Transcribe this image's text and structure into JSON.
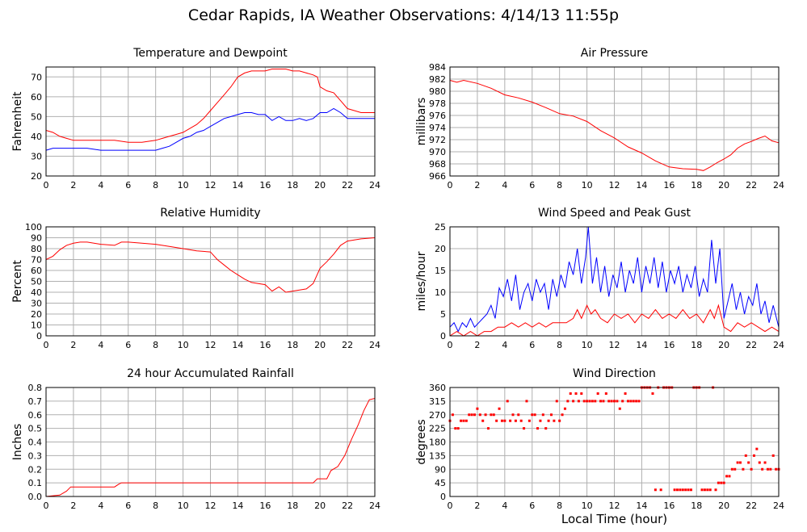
{
  "page": {
    "title": "Cedar Rapids, IA Weather Observations: 4/14/13 11:55p",
    "x_axis_title": "Local Time (hour)"
  },
  "colors": {
    "red": "#ff0000",
    "blue": "#0000ff",
    "grid": "#b0b0b0",
    "frame": "#000000"
  },
  "chart_data": [
    {
      "id": "temp",
      "type": "line",
      "title": "Temperature and Dewpoint",
      "ylabel": "Fahrenheit",
      "xlim": [
        0,
        24
      ],
      "ylim": [
        20,
        75
      ],
      "yticks": [
        20,
        30,
        40,
        50,
        60,
        70
      ],
      "xticks": [
        0,
        2,
        4,
        6,
        8,
        10,
        12,
        14,
        16,
        18,
        20,
        22,
        24
      ],
      "grid": true,
      "series": [
        {
          "color": "#ff0000",
          "x": [
            0,
            0.5,
            1,
            1.5,
            2,
            3,
            4,
            5,
            6,
            7,
            8,
            8.5,
            9,
            9.5,
            10,
            10.5,
            11,
            11.5,
            12,
            12.5,
            13,
            13.5,
            14,
            14.5,
            15,
            15.5,
            16,
            16.5,
            17,
            17.5,
            18,
            18.5,
            19,
            19.5,
            19.8,
            20,
            20.5,
            21,
            21.5,
            22,
            22.5,
            23,
            24
          ],
          "y": [
            43,
            42,
            40,
            39,
            38,
            38,
            38,
            38,
            37,
            37,
            38,
            39,
            40,
            41,
            42,
            44,
            46,
            49,
            53,
            57,
            61,
            65,
            70,
            72,
            73,
            73,
            73,
            74,
            74,
            74,
            73,
            73,
            72,
            71,
            70,
            65,
            63,
            62,
            58,
            54,
            53,
            52,
            52
          ]
        },
        {
          "color": "#0000ff",
          "x": [
            0,
            0.5,
            1,
            2,
            3,
            4,
            5,
            6,
            7,
            8,
            8.5,
            9,
            9.5,
            10,
            10.5,
            11,
            11.5,
            12,
            12.5,
            13,
            13.5,
            14,
            14.5,
            15,
            15.5,
            16,
            16.5,
            17,
            17.5,
            18,
            18.5,
            19,
            19.5,
            20,
            20.5,
            21,
            21.5,
            22,
            23,
            24
          ],
          "y": [
            33,
            34,
            34,
            34,
            34,
            33,
            33,
            33,
            33,
            33,
            34,
            35,
            37,
            39,
            40,
            42,
            43,
            45,
            47,
            49,
            50,
            51,
            52,
            52,
            51,
            51,
            48,
            50,
            48,
            48,
            49,
            48,
            49,
            52,
            52,
            54,
            52,
            49,
            49,
            49
          ]
        }
      ]
    },
    {
      "id": "pressure",
      "type": "line",
      "title": "Air Pressure",
      "ylabel": "millibars",
      "xlim": [
        0,
        24
      ],
      "ylim": [
        966,
        984
      ],
      "yticks": [
        966,
        968,
        970,
        972,
        974,
        976,
        978,
        980,
        982,
        984
      ],
      "xticks": [
        0,
        2,
        4,
        6,
        8,
        10,
        12,
        14,
        16,
        18,
        20,
        22,
        24
      ],
      "grid": true,
      "series": [
        {
          "color": "#ff0000",
          "x": [
            0,
            0.5,
            1,
            2,
            3,
            4,
            5,
            6,
            7,
            8,
            9,
            10,
            11,
            12,
            13,
            14,
            15,
            16,
            17,
            18,
            18.5,
            19,
            19.5,
            20,
            20.5,
            21,
            21.5,
            22,
            22.5,
            23,
            23.5,
            24
          ],
          "y": [
            981.8,
            981.5,
            981.8,
            981.3,
            980.5,
            979.4,
            978.9,
            978.2,
            977.3,
            976.3,
            975.9,
            975.0,
            973.5,
            972.3,
            970.8,
            969.8,
            968.5,
            967.5,
            967.2,
            967.1,
            966.9,
            967.5,
            968.2,
            968.8,
            969.5,
            970.6,
            971.3,
            971.7,
            972.2,
            972.6,
            971.8,
            971.5
          ]
        }
      ]
    },
    {
      "id": "humidity",
      "type": "line",
      "title": "Relative Humidity",
      "ylabel": "Percent",
      "xlim": [
        0,
        24
      ],
      "ylim": [
        0,
        100
      ],
      "yticks": [
        0,
        10,
        20,
        30,
        40,
        50,
        60,
        70,
        80,
        90,
        100
      ],
      "xticks": [
        0,
        2,
        4,
        6,
        8,
        10,
        12,
        14,
        16,
        18,
        20,
        22,
        24
      ],
      "grid": true,
      "series": [
        {
          "color": "#ff0000",
          "x": [
            0,
            0.5,
            1,
            1.5,
            2,
            2.5,
            3,
            4,
            5,
            5.5,
            6,
            7,
            8,
            9,
            10,
            11,
            12,
            12.5,
            13,
            13.5,
            14,
            14.5,
            15,
            16,
            16.5,
            17,
            17.5,
            18,
            19,
            19.5,
            20,
            20.5,
            21,
            21.5,
            22,
            23,
            24
          ],
          "y": [
            70,
            73,
            79,
            83,
            85,
            86,
            86,
            84,
            83,
            86,
            86,
            85,
            84,
            82,
            80,
            78,
            77,
            70,
            65,
            60,
            56,
            52,
            49,
            47,
            41,
            45,
            40,
            41,
            43,
            48,
            62,
            68,
            75,
            83,
            87,
            89,
            90
          ]
        }
      ]
    },
    {
      "id": "wind",
      "type": "line",
      "title": "Wind Speed and Peak Gust",
      "ylabel": "miles/hour",
      "xlim": [
        0,
        24
      ],
      "ylim": [
        0,
        25
      ],
      "yticks": [
        0,
        5,
        10,
        15,
        20,
        25
      ],
      "xticks": [
        0,
        2,
        4,
        6,
        8,
        10,
        12,
        14,
        16,
        18,
        20,
        22,
        24
      ],
      "grid": true,
      "series": [
        {
          "color": "#0000ff",
          "x": [
            0,
            0.3,
            0.6,
            0.9,
            1.2,
            1.5,
            1.8,
            2.1,
            2.4,
            2.7,
            3,
            3.3,
            3.6,
            3.9,
            4.2,
            4.5,
            4.8,
            5.1,
            5.4,
            5.7,
            6,
            6.3,
            6.6,
            6.9,
            7.2,
            7.5,
            7.8,
            8.1,
            8.4,
            8.7,
            9,
            9.3,
            9.6,
            9.9,
            10.1,
            10.4,
            10.7,
            11,
            11.3,
            11.6,
            11.9,
            12.2,
            12.5,
            12.8,
            13.1,
            13.4,
            13.7,
            14,
            14.3,
            14.6,
            14.9,
            15.2,
            15.5,
            15.8,
            16.1,
            16.4,
            16.7,
            17,
            17.3,
            17.6,
            17.9,
            18.2,
            18.5,
            18.8,
            19.1,
            19.4,
            19.7,
            20,
            20.3,
            20.6,
            20.9,
            21.2,
            21.5,
            21.8,
            22.1,
            22.4,
            22.7,
            23,
            23.3,
            23.6,
            24
          ],
          "y": [
            2,
            3,
            1,
            3,
            2,
            4,
            2,
            3,
            4,
            5,
            7,
            4,
            11,
            9,
            13,
            8,
            14,
            6,
            10,
            12,
            8,
            13,
            10,
            12,
            6,
            13,
            9,
            14,
            11,
            17,
            14,
            20,
            12,
            18,
            25,
            12,
            18,
            10,
            16,
            9,
            14,
            11,
            17,
            10,
            15,
            12,
            18,
            10,
            16,
            12,
            18,
            11,
            17,
            10,
            15,
            12,
            16,
            10,
            14,
            11,
            16,
            9,
            13,
            10,
            22,
            12,
            20,
            4,
            8,
            12,
            6,
            10,
            5,
            9,
            7,
            12,
            5,
            8,
            3,
            7,
            2
          ]
        },
        {
          "color": "#ff0000",
          "x": [
            0,
            0.5,
            1,
            1.5,
            2,
            2.5,
            3,
            3.5,
            4,
            4.5,
            5,
            5.5,
            6,
            6.5,
            7,
            7.5,
            8,
            8.5,
            9,
            9.3,
            9.6,
            10,
            10.3,
            10.6,
            11,
            11.5,
            12,
            12.5,
            13,
            13.5,
            14,
            14.5,
            15,
            15.5,
            16,
            16.5,
            17,
            17.5,
            18,
            18.5,
            19,
            19.3,
            19.6,
            20,
            20.5,
            21,
            21.5,
            22,
            22.5,
            23,
            23.5,
            24
          ],
          "y": [
            0,
            1,
            0,
            1,
            0,
            1,
            1,
            2,
            2,
            3,
            2,
            3,
            2,
            3,
            2,
            3,
            3,
            3,
            4,
            6,
            4,
            7,
            5,
            6,
            4,
            3,
            5,
            4,
            5,
            3,
            5,
            4,
            6,
            4,
            5,
            4,
            6,
            4,
            5,
            3,
            6,
            4,
            7,
            2,
            1,
            3,
            2,
            3,
            2,
            1,
            2,
            1
          ]
        }
      ]
    },
    {
      "id": "rain",
      "type": "line",
      "title": "24 hour Accumulated Rainfall",
      "ylabel": "Inches",
      "xlim": [
        0,
        24
      ],
      "ylim": [
        0,
        0.8
      ],
      "yticks": [
        0.0,
        0.1,
        0.2,
        0.3,
        0.4,
        0.5,
        0.6,
        0.7,
        0.8
      ],
      "ytick_labels": [
        "0.0",
        "0.1",
        "0.2",
        "0.3",
        "0.4",
        "0.5",
        "0.6",
        "0.7",
        "0.8"
      ],
      "xticks": [
        0,
        2,
        4,
        6,
        8,
        10,
        12,
        14,
        16,
        18,
        20,
        22,
        24
      ],
      "grid": true,
      "series": [
        {
          "color": "#ff0000",
          "x": [
            0,
            1,
            1.5,
            1.8,
            2,
            5,
            5.3,
            5.5,
            6,
            19.5,
            19.8,
            20.5,
            20.8,
            21.3,
            21.8,
            22.3,
            22.8,
            23.2,
            23.6,
            24
          ],
          "y": [
            0,
            0.01,
            0.04,
            0.07,
            0.07,
            0.07,
            0.09,
            0.1,
            0.1,
            0.1,
            0.13,
            0.13,
            0.19,
            0.22,
            0.3,
            0.42,
            0.53,
            0.63,
            0.71,
            0.72
          ]
        }
      ]
    },
    {
      "id": "direction",
      "type": "scatter",
      "title": "Wind Direction",
      "ylabel": "degrees",
      "xlim": [
        0,
        24
      ],
      "ylim": [
        0,
        360
      ],
      "yticks": [
        0,
        45,
        90,
        135,
        180,
        225,
        270,
        315,
        360
      ],
      "xticks": [
        0,
        2,
        4,
        6,
        8,
        10,
        12,
        14,
        16,
        18,
        20,
        22,
        24
      ],
      "grid": true,
      "series": [
        {
          "color": "#ff0000",
          "x": [
            0,
            0.2,
            0.4,
            0.6,
            0.8,
            1.0,
            1.2,
            1.4,
            1.6,
            1.8,
            2.0,
            2.2,
            2.4,
            2.6,
            2.8,
            3.0,
            3.2,
            3.4,
            3.6,
            3.8,
            4.0,
            4.2,
            4.4,
            4.6,
            4.8,
            5.0,
            5.2,
            5.4,
            5.6,
            5.8,
            6.0,
            6.2,
            6.4,
            6.6,
            6.8,
            7.0,
            7.2,
            7.4,
            7.6,
            7.8,
            8.0,
            8.2,
            8.4,
            8.6,
            8.8,
            9.0,
            9.2,
            9.4,
            9.6,
            9.8,
            10.0,
            10.2,
            10.4,
            10.6,
            10.8,
            11.0,
            11.2,
            11.4,
            11.6,
            11.8,
            12.0,
            12.2,
            12.4,
            12.6,
            12.8,
            13.0,
            13.2,
            13.4,
            13.6,
            13.8,
            14.0,
            14.2,
            14.4,
            14.6,
            14.8,
            15.0,
            15.2,
            15.4,
            15.6,
            15.8,
            16.0,
            16.2,
            16.4,
            16.6,
            16.8,
            17.0,
            17.2,
            17.4,
            17.6,
            17.8,
            18.0,
            18.2,
            18.4,
            18.6,
            18.8,
            19.0,
            19.2,
            19.4,
            19.6,
            19.8,
            20.0,
            20.2,
            20.4,
            20.6,
            20.8,
            21.0,
            21.2,
            21.4,
            21.6,
            21.8,
            22.0,
            22.2,
            22.4,
            22.6,
            22.8,
            23.0,
            23.2,
            23.4,
            23.6,
            23.8,
            24.0
          ],
          "y": [
            250,
            270,
            225,
            225,
            250,
            250,
            250,
            270,
            270,
            270,
            290,
            270,
            250,
            270,
            225,
            270,
            270,
            250,
            290,
            250,
            250,
            315,
            250,
            270,
            250,
            270,
            250,
            225,
            315,
            250,
            270,
            270,
            225,
            250,
            270,
            225,
            250,
            270,
            250,
            315,
            250,
            270,
            290,
            315,
            340,
            315,
            340,
            315,
            340,
            315,
            315,
            315,
            315,
            315,
            340,
            315,
            315,
            340,
            315,
            315,
            315,
            315,
            290,
            315,
            340,
            315,
            315,
            315,
            315,
            315,
            360,
            360,
            360,
            360,
            340,
            22,
            360,
            22,
            360,
            360,
            360,
            360,
            22,
            22,
            22,
            22,
            22,
            22,
            22,
            360,
            360,
            360,
            22,
            22,
            22,
            22,
            360,
            22,
            45,
            45,
            45,
            67,
            67,
            90,
            90,
            112,
            112,
            90,
            135,
            112,
            90,
            135,
            157,
            112,
            90,
            112,
            90,
            90,
            135,
            90,
            90
          ]
        }
      ]
    }
  ]
}
